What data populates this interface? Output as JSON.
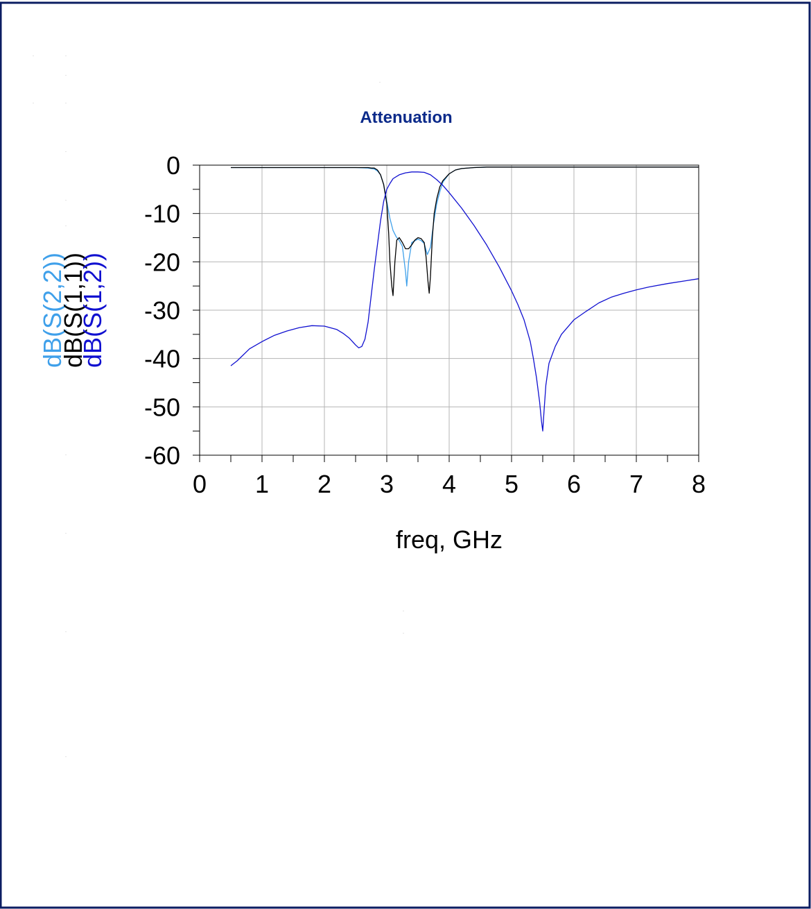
{
  "page": {
    "border_color": "#0b1d62"
  },
  "chart_data": {
    "type": "line",
    "title": "Attenuation",
    "xlabel": "freq, GHz",
    "ylabel": "",
    "xlim": [
      0,
      8
    ],
    "ylim": [
      -60,
      0
    ],
    "x_ticks": [
      0,
      1,
      2,
      3,
      4,
      5,
      6,
      7,
      8
    ],
    "y_ticks": [
      0,
      -10,
      -20,
      -30,
      -40,
      -50,
      -60
    ],
    "x_tick_labels": [
      "0",
      "1",
      "2",
      "3",
      "4",
      "5",
      "6",
      "7",
      "8"
    ],
    "y_tick_labels": [
      "0",
      "-10",
      "-20",
      "-30",
      "-40",
      "-50",
      "-60"
    ],
    "grid": true,
    "legend": "stacked vertical labels left of y-axis",
    "title_color": "#0b2a8a",
    "series": [
      {
        "name": "dB(S(2,2))",
        "color": "#3fa0ea",
        "x": [
          0.5,
          2.5,
          2.7,
          2.8,
          2.85,
          2.9,
          2.95,
          3.0,
          3.05,
          3.1,
          3.15,
          3.2,
          3.25,
          3.3,
          3.32,
          3.35,
          3.4,
          3.5,
          3.55,
          3.6,
          3.65,
          3.7,
          3.75,
          3.8,
          3.85,
          3.9,
          4.0,
          4.1,
          4.2,
          4.4,
          4.6,
          5.0,
          6.0,
          8.0
        ],
        "values": [
          -0.5,
          -0.5,
          -0.6,
          -0.8,
          -1.2,
          -2.0,
          -4.0,
          -7.5,
          -11.0,
          -13.5,
          -14.8,
          -15.6,
          -16.8,
          -22.0,
          -25.0,
          -20.0,
          -16.0,
          -15.3,
          -15.6,
          -16.2,
          -18.5,
          -17.0,
          -12.0,
          -8.0,
          -5.5,
          -3.5,
          -1.8,
          -1.0,
          -0.7,
          -0.5,
          -0.4,
          -0.4,
          -0.4,
          -0.4
        ]
      },
      {
        "name": "dB(S(1,1))",
        "color": "#000000",
        "x": [
          0.5,
          2.5,
          2.7,
          2.75,
          2.8,
          2.85,
          2.9,
          2.95,
          3.0,
          3.03,
          3.05,
          3.08,
          3.1,
          3.13,
          3.16,
          3.2,
          3.25,
          3.3,
          3.35,
          3.4,
          3.45,
          3.5,
          3.55,
          3.6,
          3.63,
          3.66,
          3.68,
          3.7,
          3.73,
          3.76,
          3.8,
          3.85,
          3.9,
          4.0,
          4.1,
          4.2,
          4.4,
          4.6,
          5.0,
          8.0
        ],
        "values": [
          -0.5,
          -0.5,
          -0.5,
          -0.6,
          -0.6,
          -1.0,
          -2.0,
          -4.0,
          -8.0,
          -14.0,
          -20.0,
          -25.0,
          -27.0,
          -20.0,
          -15.5,
          -15.0,
          -16.0,
          -17.3,
          -17.3,
          -16.5,
          -15.5,
          -15.0,
          -15.2,
          -16.0,
          -19.0,
          -24.0,
          -26.5,
          -23.0,
          -15.0,
          -10.0,
          -7.0,
          -4.5,
          -3.2,
          -1.8,
          -1.0,
          -0.7,
          -0.5,
          -0.4,
          -0.4,
          -0.4
        ]
      },
      {
        "name": "dB(S(1,2))",
        "color": "#1010d0",
        "x": [
          0.5,
          0.6,
          0.8,
          1.0,
          1.2,
          1.4,
          1.6,
          1.8,
          2.0,
          2.2,
          2.3,
          2.4,
          2.5,
          2.55,
          2.6,
          2.65,
          2.7,
          2.75,
          2.8,
          2.85,
          2.9,
          2.95,
          3.0,
          3.05,
          3.1,
          3.2,
          3.3,
          3.4,
          3.5,
          3.6,
          3.7,
          3.8,
          3.9,
          4.0,
          4.2,
          4.4,
          4.6,
          4.8,
          5.0,
          5.1,
          5.2,
          5.3,
          5.35,
          5.4,
          5.45,
          5.48,
          5.5,
          5.52,
          5.55,
          5.6,
          5.7,
          5.8,
          6.0,
          6.2,
          6.4,
          6.6,
          6.8,
          7.0,
          7.2,
          7.5,
          7.8,
          8.0
        ],
        "values": [
          -41.5,
          -40.5,
          -38.0,
          -36.5,
          -35.2,
          -34.3,
          -33.6,
          -33.2,
          -33.3,
          -34.0,
          -34.8,
          -35.8,
          -37.2,
          -37.8,
          -37.5,
          -36.0,
          -32.5,
          -27.0,
          -21.5,
          -16.5,
          -11.5,
          -7.5,
          -5.0,
          -3.8,
          -2.8,
          -2.0,
          -1.6,
          -1.4,
          -1.4,
          -1.5,
          -2.0,
          -3.0,
          -4.2,
          -5.7,
          -8.9,
          -12.5,
          -16.5,
          -21.0,
          -26.0,
          -28.8,
          -32.0,
          -36.5,
          -40.0,
          -44.0,
          -49.0,
          -53.0,
          -55.0,
          -51.0,
          -45.5,
          -41.0,
          -37.5,
          -35.0,
          -32.0,
          -30.2,
          -28.5,
          -27.3,
          -26.5,
          -25.8,
          -25.2,
          -24.5,
          -23.9,
          -23.5
        ]
      }
    ]
  }
}
